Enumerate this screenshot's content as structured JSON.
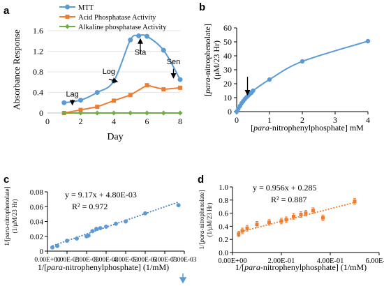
{
  "chart_data": [
    {
      "panel": "a",
      "type": "line",
      "xlabel": "Day",
      "ylabel": "Absorbance Response",
      "xlim": [
        0,
        8
      ],
      "ylim": [
        0,
        1.6
      ],
      "xticks": [
        0,
        2,
        4,
        6,
        8
      ],
      "yticks": [
        "0",
        "0.4",
        "0.8",
        "1.2",
        "1.6"
      ],
      "legend_position": "top",
      "series": [
        {
          "name": "MTT",
          "color": "#5b9bd5",
          "marker": "circle",
          "x": [
            1,
            2,
            3,
            4,
            5,
            5.5,
            6,
            7,
            8
          ],
          "y": [
            0.2,
            0.25,
            0.4,
            0.62,
            1.42,
            1.5,
            1.49,
            1.22,
            0.65
          ]
        },
        {
          "name": "Acid Phosphatase Activity",
          "color": "#ed7d31",
          "marker": "square",
          "x": [
            1,
            2,
            3,
            4,
            5,
            6,
            7,
            8
          ],
          "y": [
            0.0,
            0.06,
            0.12,
            0.24,
            0.35,
            0.54,
            0.46,
            0.49
          ]
        },
        {
          "name": "Alkaline phosphatase Activity",
          "color": "#70ad47",
          "marker": "diamond",
          "x": [
            1,
            2,
            3,
            4,
            5,
            6,
            7,
            8
          ],
          "y": [
            0,
            0,
            0,
            0,
            0,
            0,
            0,
            0
          ]
        }
      ],
      "annotations": [
        {
          "text": "Lag",
          "x": 1.5,
          "y": 0.32
        },
        {
          "text": "Log",
          "x": 3.7,
          "y": 0.76
        },
        {
          "text": "Sta",
          "x": 5.6,
          "y": 1.13
        },
        {
          "text": "Sen",
          "x": 7.6,
          "y": 0.95
        }
      ]
    },
    {
      "panel": "b",
      "type": "scatter",
      "ylabel_parts": [
        "[",
        "para",
        "-nitrophenolate]"
      ],
      "ylabel2": "(μM/23 Hr)",
      "xlabel_parts": [
        "[",
        "para",
        "-nitrophenylphosphate] mM"
      ],
      "xlim": [
        0,
        4
      ],
      "ylim": [
        0,
        60
      ],
      "xticks": [
        0,
        1,
        2,
        3,
        4
      ],
      "yticks": [
        0,
        10,
        20,
        30,
        40,
        50,
        60
      ],
      "color": "#5b9bd5",
      "x": [
        0,
        0.05,
        0.1,
        0.15,
        0.2,
        0.25,
        0.3,
        0.35,
        0.4,
        0.45,
        0.5,
        1,
        2,
        4
      ],
      "y": [
        0,
        2,
        4,
        6,
        7.5,
        9,
        10.3,
        11.5,
        12.6,
        13.6,
        15,
        23,
        36,
        50.5
      ],
      "arrow": {
        "x": 0.33,
        "y_from": 25,
        "y_to": 13.5
      }
    },
    {
      "panel": "c",
      "type": "scatter",
      "ylabel_parts": [
        "1/[",
        "para",
        "-nitrophenolate]"
      ],
      "ylabel2": "(1/μM/23 Hr)",
      "xlabel_parts": [
        "1/[",
        "para",
        "-nitrophenylphosphate] (1/mM)"
      ],
      "xlim": [
        0,
        0.007
      ],
      "ylim": [
        0,
        0.08
      ],
      "xticks": [
        "0.00E+00",
        "1.00E-03",
        "2.00E-03",
        "3.00E-03",
        "4.00E-03",
        "5.00E-03",
        "6.00E-03",
        "7.00E-03"
      ],
      "yticks": [
        "0",
        "0.02",
        "0.04",
        "0.06",
        "0.08"
      ],
      "color": "#5b9bd5",
      "x": [
        0.00025,
        0.0005,
        0.001,
        0.0015,
        0.002,
        0.0021,
        0.0023,
        0.0025,
        0.0027,
        0.003,
        0.0035,
        0.004,
        0.005,
        0.0067
      ],
      "y": [
        0.005,
        0.007,
        0.014,
        0.017,
        0.02,
        0.021,
        0.027,
        0.03,
        0.031,
        0.033,
        0.037,
        0.04,
        0.051,
        0.062
      ],
      "trendline": {
        "slope": 9.17,
        "intercept": 0.0048
      },
      "equation": "y = 9.17x + 4.80E-03",
      "r2": "R² = 0.972"
    },
    {
      "panel": "d",
      "type": "scatter",
      "ylabel_parts": [
        "1/[",
        "para",
        "-nitrophenolate]"
      ],
      "ylabel2": "(1/μM/23 Hr)",
      "xlabel_parts": [
        "1/[",
        "para",
        "-nitrophenylphosphate] (1/mM)"
      ],
      "xlim": [
        0,
        0.6
      ],
      "ylim": [
        0,
        1.0
      ],
      "xticks": [
        "0.00E+00",
        "2.00E-01",
        "4.00E-01",
        "6.00E-01"
      ],
      "yticks": [
        "0.0",
        "0.2",
        "0.4",
        "0.6",
        "0.8",
        "1.0"
      ],
      "color": "#ed7d31",
      "x": [
        0.025,
        0.04,
        0.06,
        0.1,
        0.15,
        0.2,
        0.22,
        0.25,
        0.28,
        0.3,
        0.33,
        0.37,
        0.5
      ],
      "y": [
        0.28,
        0.33,
        0.37,
        0.43,
        0.46,
        0.48,
        0.5,
        0.55,
        0.58,
        0.6,
        0.64,
        0.53,
        0.78
      ],
      "trendline": {
        "slope": 0.956,
        "intercept": 0.285
      },
      "equation": "y = 0.956x + 0.285",
      "r2": "R² = 0.887"
    }
  ]
}
